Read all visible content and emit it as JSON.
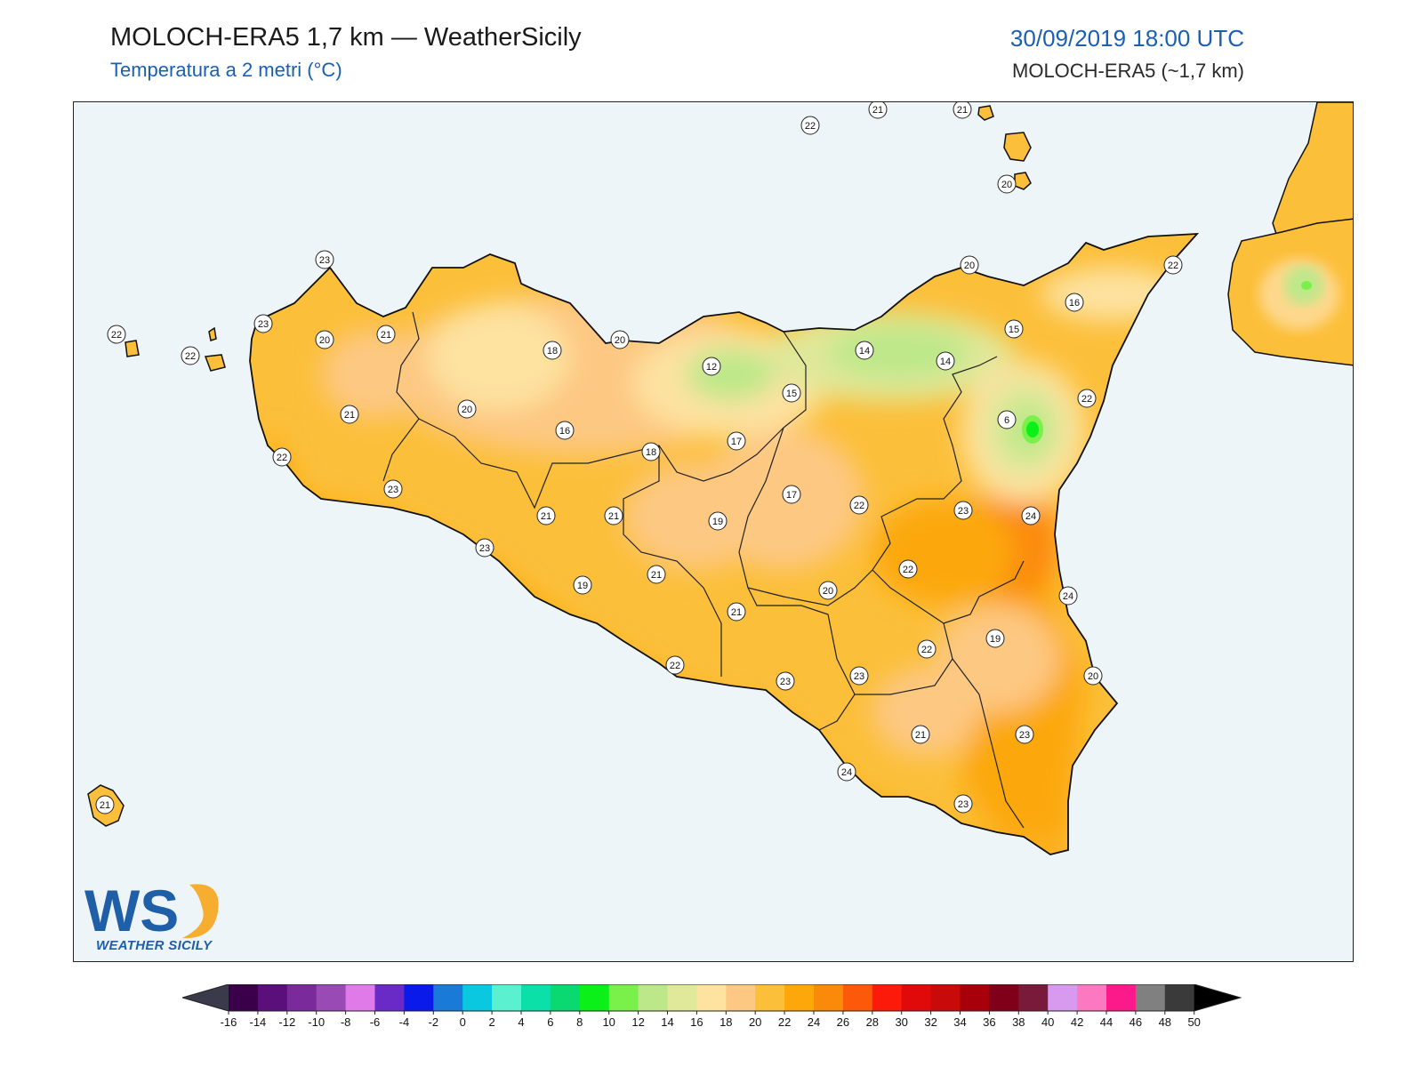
{
  "header": {
    "title": "MOLOCH-ERA5 1,7 km — WeatherSicily",
    "subtitle": "Temperatura a 2 metri (°C)",
    "datetime": "30/09/2019 18:00 UTC",
    "model": "MOLOCH-ERA5 (~1,7 km)"
  },
  "logo": {
    "letters": "WS",
    "text": "WEATHER SICILY"
  },
  "colors": {
    "sea": "#eef5f9",
    "land_base": "#fcb94c",
    "coast": "#111111",
    "accent": "#1a5fb4"
  },
  "stations": [
    {
      "id": "s1",
      "value": "22"
    },
    {
      "id": "s2",
      "value": "21"
    },
    {
      "id": "s3",
      "value": "21"
    },
    {
      "id": "s4",
      "value": "20"
    },
    {
      "id": "s5",
      "value": "22"
    },
    {
      "id": "s6",
      "value": "22"
    },
    {
      "id": "s7",
      "value": "23"
    },
    {
      "id": "s8",
      "value": "23"
    },
    {
      "id": "s9",
      "value": "20"
    },
    {
      "id": "s10",
      "value": "21"
    },
    {
      "id": "s11",
      "value": "18"
    },
    {
      "id": "s12",
      "value": "20"
    },
    {
      "id": "s13",
      "value": "20"
    },
    {
      "id": "s14",
      "value": "22"
    },
    {
      "id": "s15",
      "value": "16"
    },
    {
      "id": "s16",
      "value": "15"
    },
    {
      "id": "s17",
      "value": "14"
    },
    {
      "id": "s18",
      "value": "14"
    },
    {
      "id": "s19",
      "value": "12"
    },
    {
      "id": "s20",
      "value": "15"
    },
    {
      "id": "s21",
      "value": "22"
    },
    {
      "id": "s22",
      "value": "6"
    },
    {
      "id": "s23",
      "value": "21"
    },
    {
      "id": "s24",
      "value": "20"
    },
    {
      "id": "s25",
      "value": "16"
    },
    {
      "id": "s26",
      "value": "17"
    },
    {
      "id": "s27",
      "value": "18"
    },
    {
      "id": "s28",
      "value": "22"
    },
    {
      "id": "s29",
      "value": "23"
    },
    {
      "id": "s30",
      "value": "17"
    },
    {
      "id": "s31",
      "value": "22"
    },
    {
      "id": "s32",
      "value": "23"
    },
    {
      "id": "s33",
      "value": "24"
    },
    {
      "id": "s34",
      "value": "21"
    },
    {
      "id": "s35",
      "value": "21"
    },
    {
      "id": "s36",
      "value": "19"
    },
    {
      "id": "s37",
      "value": "23"
    },
    {
      "id": "s38",
      "value": "22"
    },
    {
      "id": "s39",
      "value": "21"
    },
    {
      "id": "s40",
      "value": "21"
    },
    {
      "id": "s41",
      "value": "20"
    },
    {
      "id": "s42",
      "value": "24"
    },
    {
      "id": "s43",
      "value": "19"
    },
    {
      "id": "s44",
      "value": "19"
    },
    {
      "id": "s45",
      "value": "22"
    },
    {
      "id": "s46",
      "value": "22"
    },
    {
      "id": "s47",
      "value": "23"
    },
    {
      "id": "s48",
      "value": "23"
    },
    {
      "id": "s49",
      "value": "20"
    },
    {
      "id": "s50",
      "value": "21"
    },
    {
      "id": "s51",
      "value": "23"
    },
    {
      "id": "s52",
      "value": "24"
    },
    {
      "id": "s53",
      "value": "23"
    },
    {
      "id": "s54",
      "value": "21"
    }
  ],
  "colorbar": {
    "ticks": [
      "-16",
      "-14",
      "-12",
      "-10",
      "-8",
      "-6",
      "-4",
      "-2",
      "0",
      "2",
      "4",
      "6",
      "8",
      "10",
      "12",
      "14",
      "16",
      "18",
      "20",
      "22",
      "24",
      "26",
      "28",
      "30",
      "32",
      "34",
      "36",
      "38",
      "40",
      "42",
      "44",
      "46",
      "48",
      "50"
    ],
    "low_color": "#3a3a4a",
    "high_color": "#000000",
    "colors": [
      "#3a004a",
      "#5a0f7a",
      "#7a2a9a",
      "#9a4ab5",
      "#e07ae8",
      "#6a2ac8",
      "#0a1ae8",
      "#1a7ad8",
      "#0ac8e0",
      "#5af0d0",
      "#0ae0a8",
      "#0ad870",
      "#0af018",
      "#7af04a",
      "#bde88a",
      "#e0e89a",
      "#fde2a0",
      "#fdc882",
      "#fcbf3a",
      "#fca80a",
      "#fc8a0a",
      "#fc5a0a",
      "#fc1a0a",
      "#e00a0a",
      "#c80a0a",
      "#a8000a",
      "#80001a",
      "#7a1a3a",
      "#d89aee",
      "#fc78c0",
      "#fc1a8a",
      "#808080",
      "#3a3a3a"
    ]
  }
}
